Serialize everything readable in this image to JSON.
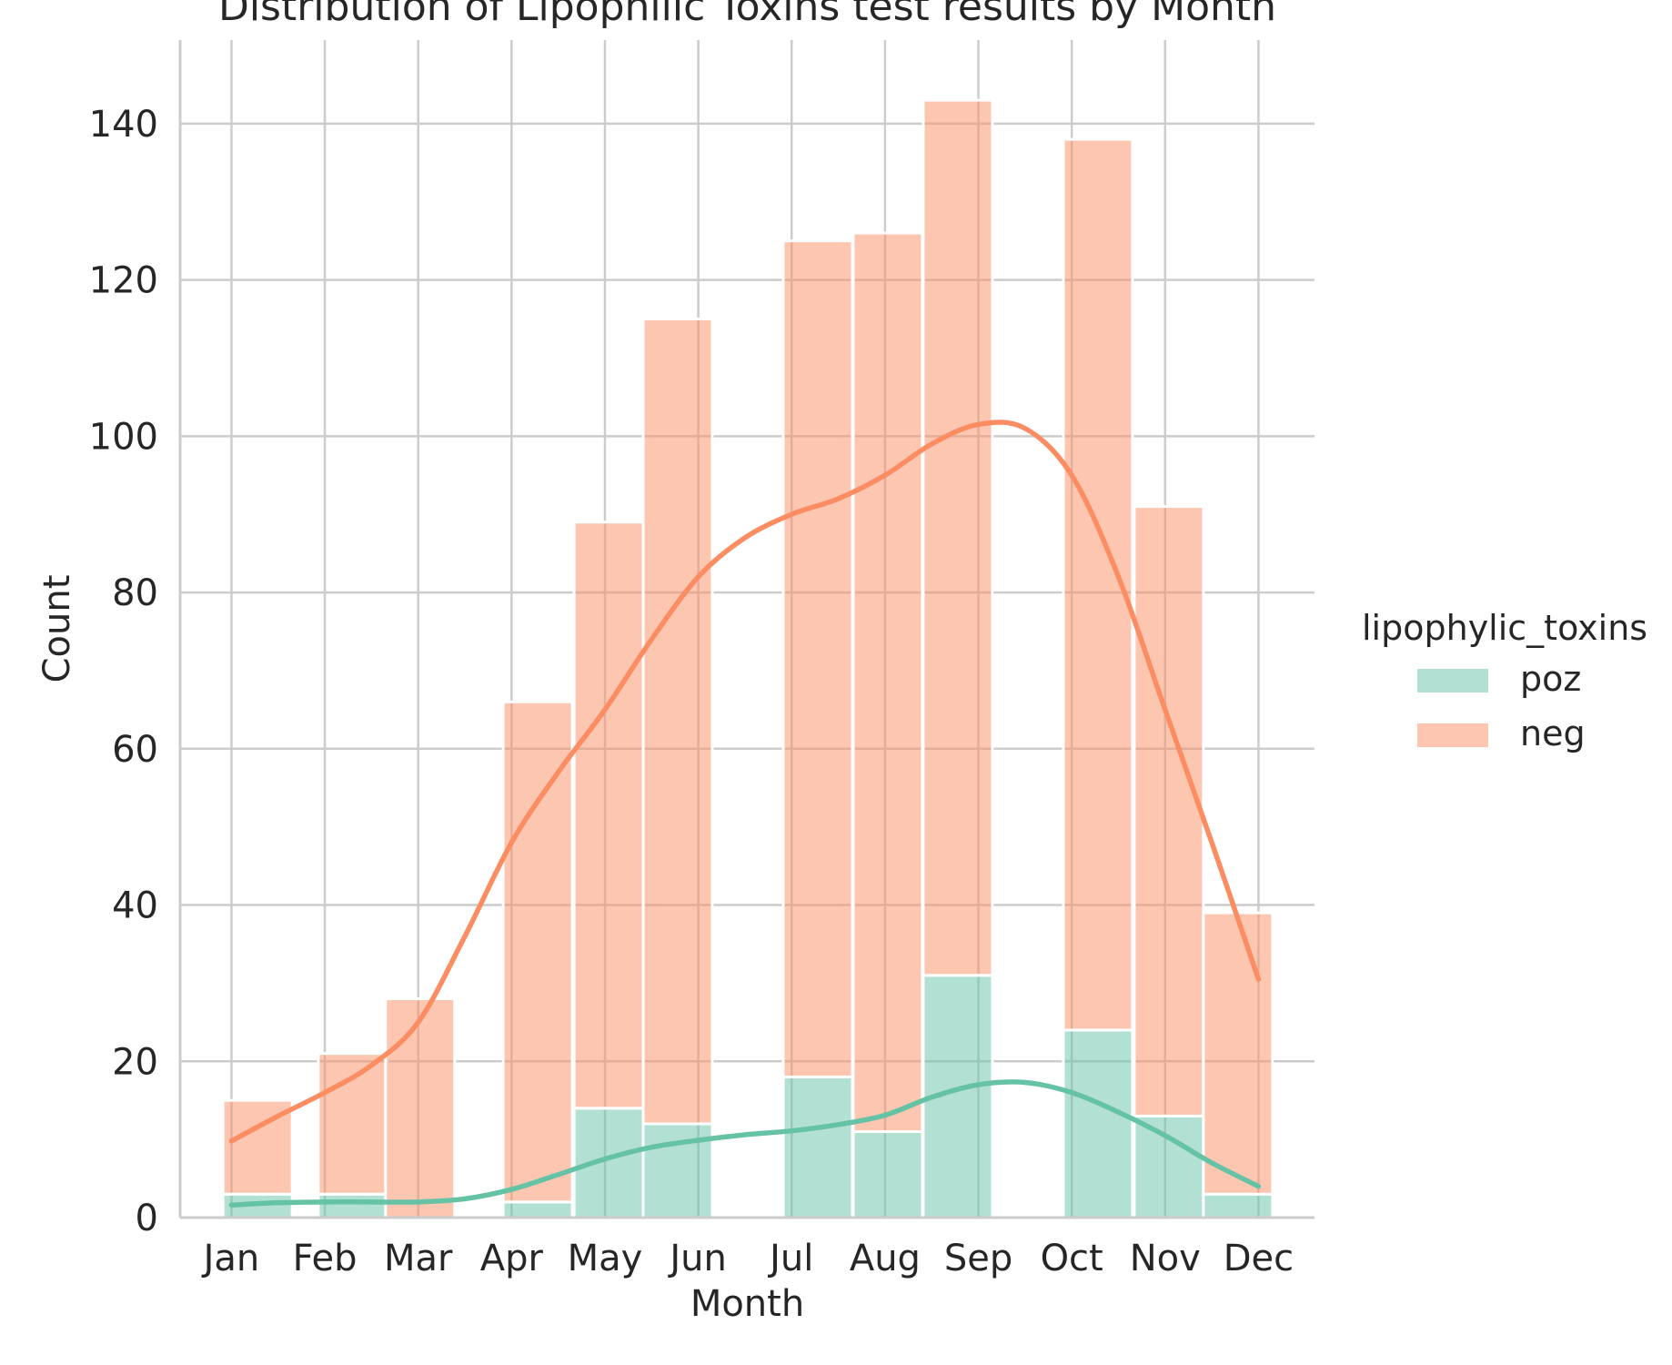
{
  "chart_data": {
    "type": "bar",
    "title": "Distribution of Lipophilic Toxins test results by Month",
    "xlabel": "Month",
    "ylabel": "Count",
    "stacked": true,
    "categories": [
      "Jan",
      "Feb",
      "Mar",
      "Apr",
      "May",
      "Jun",
      "Jul",
      "Aug",
      "Sep",
      "Oct",
      "Nov",
      "Dec"
    ],
    "bin_centers": [
      1.28,
      2.3,
      3.02,
      4.28,
      5.04,
      5.78,
      7.28,
      8.03,
      8.78,
      10.28,
      11.04,
      11.78
    ],
    "bin_width": 0.74,
    "ylim": [
      0,
      150
    ],
    "yticks": [
      0,
      20,
      40,
      60,
      80,
      100,
      120,
      140
    ],
    "grid": true,
    "legend": {
      "title": "lipophylic_toxins",
      "position": "right",
      "entries": [
        "poz",
        "neg"
      ]
    },
    "series": [
      {
        "name": "poz",
        "color": "#66c2a5",
        "values": [
          3,
          3,
          0,
          2,
          14,
          12,
          18,
          11,
          31,
          24,
          13,
          3
        ]
      },
      {
        "name": "neg",
        "color": "#fc8d62",
        "totals": [
          15,
          21,
          28,
          66,
          89,
          115,
          125,
          126,
          143,
          138,
          91,
          39
        ],
        "values": [
          12,
          18,
          28,
          64,
          75,
          103,
          107,
          115,
          112,
          114,
          78,
          36
        ]
      }
    ],
    "kde": [
      {
        "name": "poz",
        "color": "#66c2a5",
        "x": [
          1,
          1.5,
          2,
          2.5,
          3,
          3.5,
          4,
          4.5,
          5,
          5.5,
          6,
          6.5,
          7,
          7.5,
          8,
          8.5,
          9,
          9.5,
          10,
          10.5,
          11,
          11.5,
          12
        ],
        "y": [
          1.6,
          1.9,
          2.0,
          2.0,
          2.0,
          2.4,
          3.6,
          5.5,
          7.5,
          9.0,
          9.9,
          10.6,
          11.1,
          11.9,
          13.1,
          15.4,
          17.0,
          17.3,
          16.0,
          13.5,
          10.5,
          7.0,
          4.0
        ]
      },
      {
        "name": "neg",
        "color": "#fc8d62",
        "x": [
          1,
          1.5,
          2,
          2.5,
          3,
          3.5,
          4,
          4.5,
          5,
          5.5,
          6,
          6.5,
          7,
          7.5,
          8,
          8.5,
          9,
          9.5,
          10,
          10.5,
          11,
          11.5,
          12
        ],
        "y": [
          9.8,
          13.0,
          16.0,
          19.5,
          25.0,
          36.0,
          48.0,
          57.0,
          65.0,
          74.0,
          82.0,
          87.0,
          90.0,
          92.0,
          95.0,
          99.0,
          101.5,
          101.0,
          95.0,
          82.0,
          65.0,
          48.0,
          30.5
        ]
      }
    ]
  }
}
